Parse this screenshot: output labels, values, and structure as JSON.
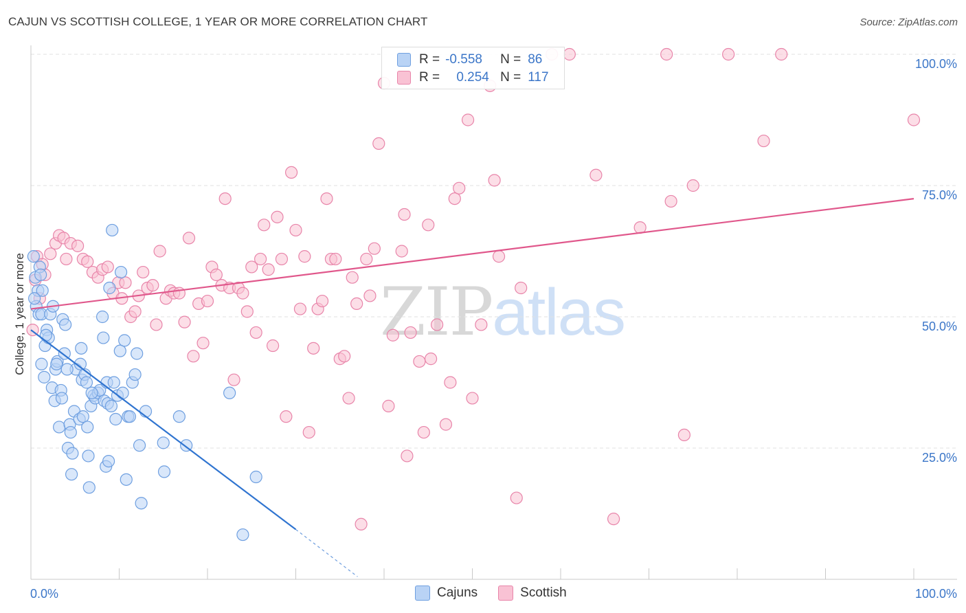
{
  "title": "CAJUN VS SCOTTISH COLLEGE, 1 YEAR OR MORE CORRELATION CHART",
  "source": "Source: ZipAtlas.com",
  "watermark": {
    "zip": "ZIP",
    "atlas": "atlas"
  },
  "legend": {
    "r_label": "R =",
    "n_label": "N =",
    "series": [
      {
        "r": "-0.558",
        "n": "86"
      },
      {
        "r": "0.254",
        "n": "117"
      }
    ]
  },
  "colors": {
    "cajuns_fill": "#b9d3f5",
    "cajuns_stroke": "#6e9fe0",
    "cajuns_line": "#2f74d0",
    "scottish_fill": "#f9c2d4",
    "scottish_stroke": "#e884a9",
    "scottish_line": "#e0578b",
    "tick_label": "#3b76c8",
    "grid": "#e2e2e2"
  },
  "chart_data": {
    "type": "scatter",
    "title": "CAJUN VS SCOTTISH COLLEGE, 1 YEAR OR MORE CORRELATION CHART",
    "xlabel": "",
    "ylabel": "College, 1 year or more",
    "xlim": [
      0,
      100
    ],
    "ylim": [
      0,
      100
    ],
    "x_tick_labels": [
      "0.0%",
      "100.0%"
    ],
    "y_ticks": [
      25,
      50,
      75,
      100
    ],
    "y_tick_labels": [
      "25.0%",
      "50.0%",
      "75.0%",
      "100.0%"
    ],
    "grid": true,
    "legend_position": "bottom-center",
    "series": [
      {
        "name": "Cajuns",
        "r": -0.558,
        "n": 86,
        "trend": {
          "x0": 0,
          "y0": 47.5,
          "x1": 30,
          "y1": 9.5,
          "dash_to_x": 37,
          "dash_to_y": 0.5
        },
        "points": [
          [
            0.3,
            61.5
          ],
          [
            0.5,
            57.5
          ],
          [
            0.6,
            52
          ],
          [
            0.8,
            55
          ],
          [
            0.9,
            50.5
          ],
          [
            1.0,
            59.5
          ],
          [
            1.1,
            58
          ],
          [
            1.2,
            50.5
          ],
          [
            1.2,
            41
          ],
          [
            1.3,
            55
          ],
          [
            1.5,
            38.5
          ],
          [
            1.6,
            44.5
          ],
          [
            1.8,
            47.5
          ],
          [
            2.0,
            46
          ],
          [
            2.2,
            50.5
          ],
          [
            2.4,
            36.5
          ],
          [
            2.5,
            52
          ],
          [
            2.7,
            34
          ],
          [
            2.8,
            40
          ],
          [
            3.0,
            41.5
          ],
          [
            3.2,
            29
          ],
          [
            3.4,
            36
          ],
          [
            3.5,
            34.5
          ],
          [
            3.6,
            49.5
          ],
          [
            3.8,
            43
          ],
          [
            3.9,
            48.5
          ],
          [
            4.2,
            25
          ],
          [
            4.4,
            29.5
          ],
          [
            4.5,
            28
          ],
          [
            4.6,
            20
          ],
          [
            4.7,
            24
          ],
          [
            4.9,
            32
          ],
          [
            5.1,
            40
          ],
          [
            5.5,
            30.5
          ],
          [
            5.6,
            41
          ],
          [
            5.7,
            44
          ],
          [
            5.8,
            38
          ],
          [
            5.9,
            31
          ],
          [
            6.1,
            39
          ],
          [
            6.3,
            37.5
          ],
          [
            6.4,
            29
          ],
          [
            6.5,
            23.5
          ],
          [
            6.6,
            17.5
          ],
          [
            6.8,
            33
          ],
          [
            7.1,
            35
          ],
          [
            7.3,
            34.5
          ],
          [
            7.6,
            35.5
          ],
          [
            7.8,
            36
          ],
          [
            8.1,
            50
          ],
          [
            8.2,
            46
          ],
          [
            8.3,
            34
          ],
          [
            8.5,
            21.5
          ],
          [
            8.6,
            37.5
          ],
          [
            8.7,
            33.5
          ],
          [
            8.8,
            22.5
          ],
          [
            8.9,
            55.5
          ],
          [
            9.1,
            33
          ],
          [
            9.2,
            66.5
          ],
          [
            9.4,
            37.5
          ],
          [
            9.6,
            30.5
          ],
          [
            9.8,
            35
          ],
          [
            10.1,
            43.5
          ],
          [
            10.2,
            58.5
          ],
          [
            10.4,
            35.5
          ],
          [
            10.6,
            45.5
          ],
          [
            10.8,
            19
          ],
          [
            11.0,
            31
          ],
          [
            11.2,
            31
          ],
          [
            11.5,
            37.5
          ],
          [
            11.8,
            39
          ],
          [
            12.0,
            43
          ],
          [
            12.3,
            25.5
          ],
          [
            12.5,
            14.5
          ],
          [
            13.0,
            32
          ],
          [
            15.0,
            26
          ],
          [
            15.1,
            20.5
          ],
          [
            16.8,
            31
          ],
          [
            17.6,
            25.5
          ],
          [
            22.5,
            35.5
          ],
          [
            25.5,
            19.5
          ],
          [
            24.0,
            8.5
          ],
          [
            0.4,
            53.5
          ],
          [
            1.7,
            46.5
          ],
          [
            2.9,
            41
          ],
          [
            4.1,
            40
          ],
          [
            6.9,
            35.5
          ]
        ]
      },
      {
        "name": "Scottish",
        "r": 0.254,
        "n": 117,
        "trend": {
          "x0": 0,
          "y0": 51.5,
          "x1": 100,
          "y1": 72.5
        },
        "points": [
          [
            0.2,
            47.5
          ],
          [
            0.5,
            57
          ],
          [
            0.7,
            61.5
          ],
          [
            1.0,
            53.5
          ],
          [
            1.3,
            60
          ],
          [
            1.6,
            58
          ],
          [
            2.2,
            62
          ],
          [
            2.8,
            64
          ],
          [
            3.2,
            65.5
          ],
          [
            3.7,
            65
          ],
          [
            4.0,
            61
          ],
          [
            4.5,
            64
          ],
          [
            5.3,
            63.5
          ],
          [
            5.9,
            61
          ],
          [
            6.4,
            60.5
          ],
          [
            7.0,
            58.5
          ],
          [
            7.6,
            57.5
          ],
          [
            8.1,
            59
          ],
          [
            8.7,
            59.5
          ],
          [
            9.3,
            54.5
          ],
          [
            9.9,
            56.5
          ],
          [
            10.3,
            53.5
          ],
          [
            10.7,
            56.5
          ],
          [
            11.3,
            50
          ],
          [
            11.8,
            51
          ],
          [
            12.2,
            54
          ],
          [
            12.7,
            58.5
          ],
          [
            13.2,
            55.5
          ],
          [
            13.8,
            56
          ],
          [
            14.2,
            48.5
          ],
          [
            14.6,
            62.5
          ],
          [
            15.3,
            53.5
          ],
          [
            15.8,
            55
          ],
          [
            16.2,
            54.5
          ],
          [
            16.8,
            54.5
          ],
          [
            17.4,
            49
          ],
          [
            17.9,
            65
          ],
          [
            18.4,
            42.5
          ],
          [
            19.0,
            52.5
          ],
          [
            19.5,
            45
          ],
          [
            20.0,
            53
          ],
          [
            20.5,
            59.5
          ],
          [
            21.0,
            58
          ],
          [
            21.6,
            56
          ],
          [
            22.0,
            72.5
          ],
          [
            22.5,
            55.5
          ],
          [
            23.0,
            38
          ],
          [
            23.5,
            55.5
          ],
          [
            24.0,
            54.5
          ],
          [
            24.5,
            51
          ],
          [
            25.0,
            59.5
          ],
          [
            25.5,
            47
          ],
          [
            26.0,
            61
          ],
          [
            26.4,
            67.5
          ],
          [
            26.9,
            59
          ],
          [
            27.4,
            44.5
          ],
          [
            27.9,
            69
          ],
          [
            28.4,
            61
          ],
          [
            28.9,
            31
          ],
          [
            29.5,
            77.5
          ],
          [
            30.0,
            66.5
          ],
          [
            30.5,
            51.5
          ],
          [
            31.0,
            61.5
          ],
          [
            31.5,
            28
          ],
          [
            32.0,
            44
          ],
          [
            32.5,
            51.5
          ],
          [
            33.0,
            53
          ],
          [
            33.5,
            72.5
          ],
          [
            34.0,
            61
          ],
          [
            34.5,
            61
          ],
          [
            35.0,
            42
          ],
          [
            35.5,
            42.5
          ],
          [
            36.0,
            34.5
          ],
          [
            36.4,
            57.5
          ],
          [
            36.9,
            52.5
          ],
          [
            37.4,
            10.5
          ],
          [
            38.0,
            61
          ],
          [
            38.4,
            54
          ],
          [
            38.9,
            63
          ],
          [
            39.4,
            83
          ],
          [
            40.0,
            94.5
          ],
          [
            40.5,
            33
          ],
          [
            41.0,
            46.5
          ],
          [
            42.0,
            62.5
          ],
          [
            42.3,
            69.5
          ],
          [
            42.6,
            23.5
          ],
          [
            43.0,
            47
          ],
          [
            44.0,
            41.5
          ],
          [
            44.5,
            28
          ],
          [
            45.0,
            67.5
          ],
          [
            45.3,
            42
          ],
          [
            46.0,
            48.5
          ],
          [
            47.0,
            29.5
          ],
          [
            47.5,
            37.5
          ],
          [
            48.0,
            72.5
          ],
          [
            48.5,
            74.5
          ],
          [
            49.5,
            87.5
          ],
          [
            50.0,
            34.5
          ],
          [
            51.0,
            48.5
          ],
          [
            52.0,
            94
          ],
          [
            52.5,
            76
          ],
          [
            53.0,
            61.5
          ],
          [
            55.0,
            15.5
          ],
          [
            55.5,
            55.5
          ],
          [
            59.0,
            100
          ],
          [
            61.0,
            100
          ],
          [
            64.0,
            77
          ],
          [
            66.0,
            11.5
          ],
          [
            69.0,
            67
          ],
          [
            72.0,
            100
          ],
          [
            72.5,
            72
          ],
          [
            74.0,
            27.5
          ],
          [
            75.0,
            75
          ],
          [
            79.0,
            100
          ],
          [
            83.0,
            83.5
          ],
          [
            85.0,
            100
          ],
          [
            100,
            87.5
          ]
        ]
      }
    ]
  }
}
